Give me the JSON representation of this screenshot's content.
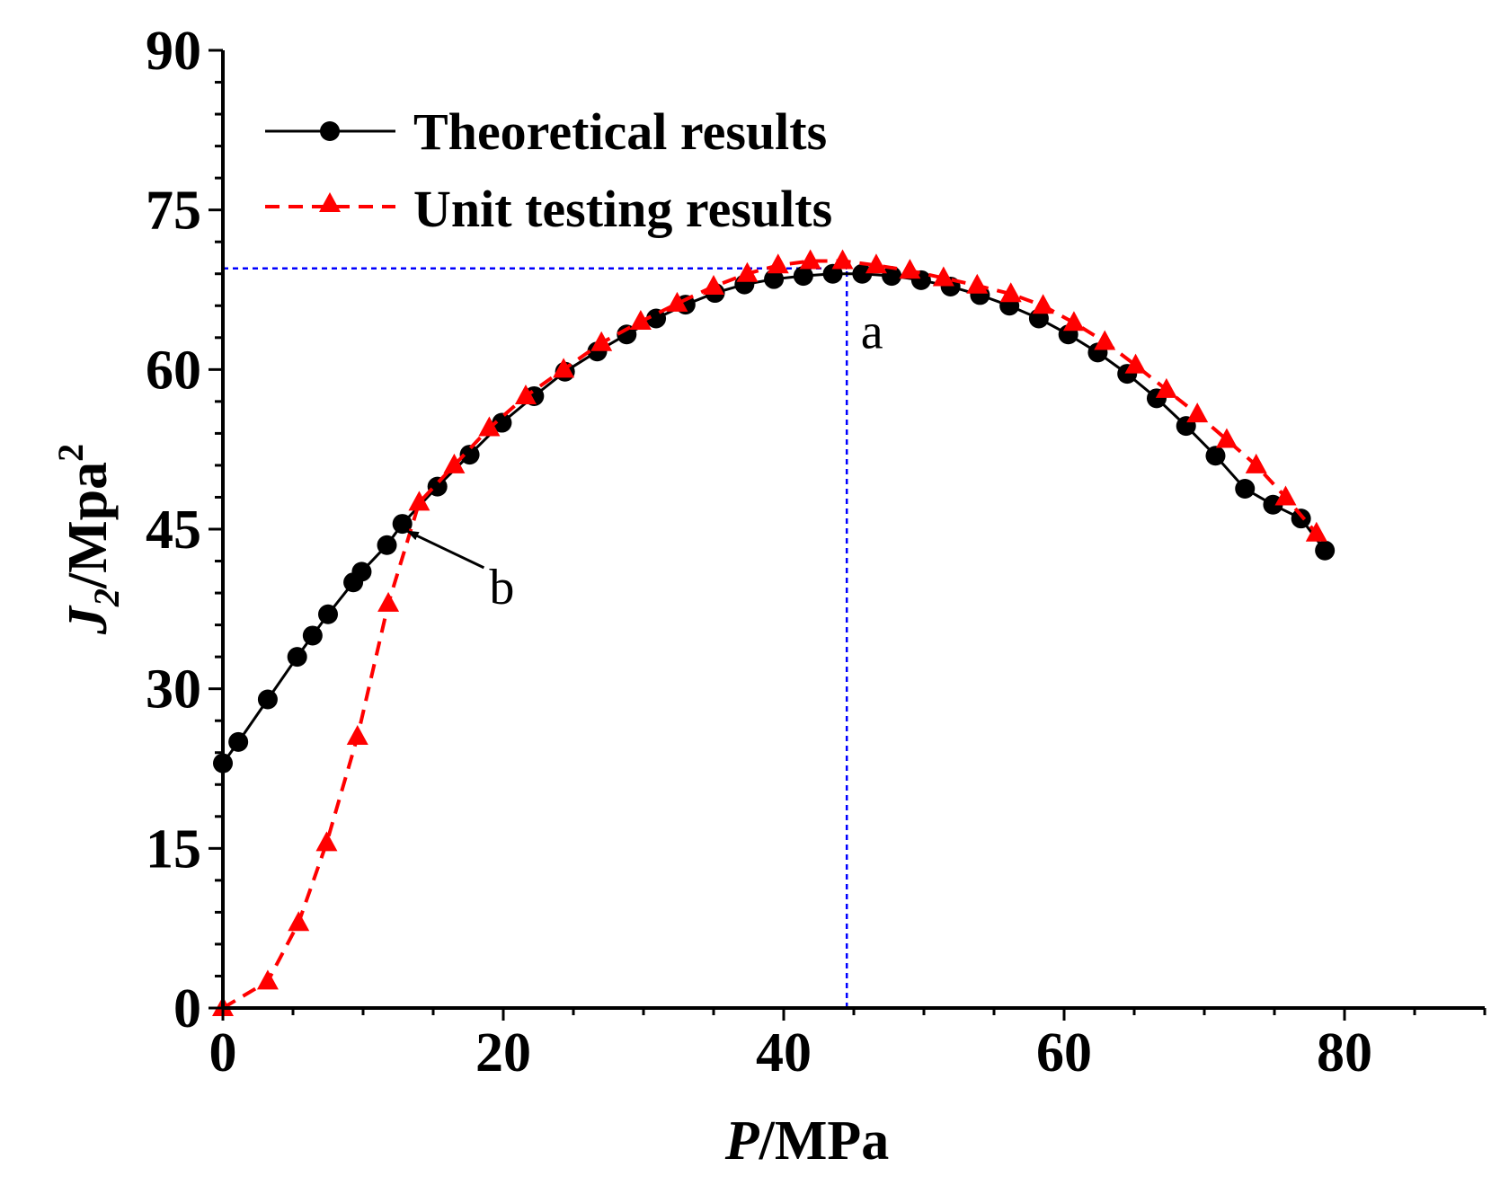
{
  "chart_data": {
    "type": "line",
    "title": "",
    "xlabel_italic": "P",
    "xlabel_rest": "/MPa",
    "ylabel_italic": "J",
    "ylabel_sub": "2",
    "ylabel_rest": "/Mpa",
    "ylabel_sup": "2",
    "xlim": [
      0,
      90
    ],
    "ylim": [
      0,
      90
    ],
    "x_ticks": [
      0,
      20,
      40,
      60,
      80
    ],
    "y_ticks": [
      0,
      15,
      30,
      45,
      60,
      75,
      90
    ],
    "legend": {
      "position": "top-left",
      "entries": [
        "Theoretical results",
        "Unit testing results"
      ]
    },
    "series": [
      {
        "name": "Theoretical results",
        "color": "#000000",
        "line": "solid",
        "marker": "circle",
        "x": [
          0,
          1.1,
          3.2,
          5.3,
          6.4,
          7.5,
          9.3,
          9.9,
          11.7,
          12.8,
          15.3,
          17.6,
          19.9,
          22.2,
          24.4,
          26.7,
          28.8,
          30.9,
          33.0,
          35.1,
          37.2,
          39.3,
          41.4,
          43.5,
          45.6,
          47.7,
          49.8,
          51.9,
          54.0,
          56.1,
          58.2,
          60.3,
          62.4,
          64.5,
          66.6,
          68.7,
          70.8,
          72.9,
          74.9,
          76.9,
          78.6
        ],
        "y": [
          23,
          25,
          29,
          33,
          35,
          37,
          40,
          41,
          43.5,
          45.5,
          49,
          52,
          55,
          57.5,
          59.8,
          61.7,
          63.3,
          64.8,
          66.1,
          67.2,
          68.0,
          68.5,
          68.8,
          69.0,
          69.0,
          68.8,
          68.4,
          67.8,
          67.0,
          66.0,
          64.8,
          63.3,
          61.6,
          59.6,
          57.3,
          54.7,
          51.9,
          48.8,
          47.3,
          46.0,
          43.0
        ]
      },
      {
        "name": "Unit testing results",
        "color": "#ff0000",
        "line": "dashed",
        "marker": "triangle",
        "x": [
          0,
          3.2,
          5.4,
          7.4,
          9.6,
          11.8,
          14.0,
          16.5,
          19.0,
          21.6,
          24.3,
          27.0,
          29.8,
          32.4,
          35.0,
          37.4,
          39.6,
          41.9,
          44.2,
          46.6,
          49.0,
          51.4,
          53.8,
          56.2,
          58.5,
          60.7,
          62.9,
          65.1,
          67.3,
          69.5,
          71.6,
          73.7,
          75.8,
          78.0
        ],
        "y": [
          0,
          2.5,
          8,
          15.5,
          25.5,
          38,
          47.5,
          51,
          54.5,
          57.5,
          60,
          62.5,
          64.5,
          66.2,
          67.8,
          69,
          69.8,
          70.2,
          70.2,
          69.8,
          69.3,
          68.6,
          67.9,
          67.1,
          66,
          64.4,
          62.6,
          60.4,
          58.1,
          55.8,
          53.4,
          51,
          48,
          44.6
        ]
      }
    ],
    "reference_lines": [
      {
        "type": "horizontal",
        "y": 69.5,
        "x_from": 0,
        "x_to": 44.5,
        "color": "#0000ff",
        "style": "dotted"
      },
      {
        "type": "vertical",
        "x": 44.5,
        "y_from": 0,
        "y_to": 69.5,
        "color": "#0000ff",
        "style": "dotted"
      }
    ],
    "annotations": [
      {
        "text": "a",
        "x": 45.5,
        "y": 62
      },
      {
        "text": "b",
        "x": 19,
        "y": 38,
        "arrow_to": [
          12.8,
          45.3
        ]
      }
    ]
  }
}
